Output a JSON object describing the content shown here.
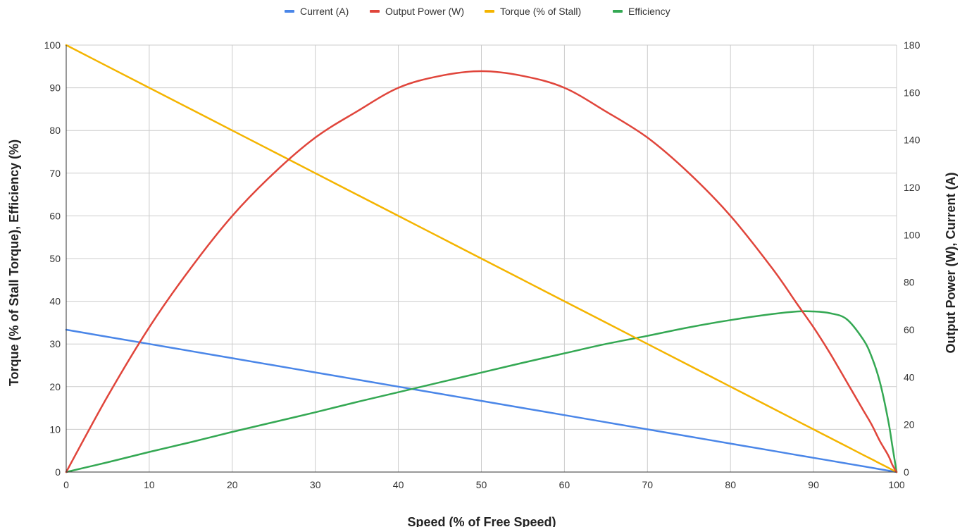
{
  "chart_data": {
    "type": "line",
    "title": "",
    "xlabel": "Speed (% of Free Speed)",
    "ylabel_left": "Torque (% of Stall Torque), Efficiency (%)",
    "ylabel_right": "Output Power (W), Current (A)",
    "xlim": [
      0,
      100
    ],
    "ylim_left": [
      0,
      100
    ],
    "ylim_right": [
      0,
      180
    ],
    "x_ticks": [
      0,
      10,
      20,
      30,
      40,
      50,
      60,
      70,
      80,
      90,
      100
    ],
    "y_left_ticks": [
      0,
      10,
      20,
      30,
      40,
      50,
      60,
      70,
      80,
      90,
      100
    ],
    "y_right_ticks": [
      0,
      20,
      40,
      60,
      80,
      100,
      120,
      140,
      160,
      180
    ],
    "grid": true,
    "legend_position": "top",
    "x": [
      0,
      5,
      10,
      15,
      20,
      25,
      30,
      35,
      40,
      45,
      50,
      55,
      60,
      65,
      70,
      75,
      80,
      85,
      88,
      90,
      92,
      94,
      96,
      97,
      98,
      99,
      99.5,
      100
    ],
    "series": [
      {
        "name": "Current (A)",
        "color": "#4a86e8",
        "axis": "right",
        "values": [
          60,
          57,
          54,
          51,
          48,
          45,
          42,
          39,
          36,
          33,
          30,
          27,
          24,
          21,
          18,
          15,
          12,
          9,
          7.2,
          6,
          4.8,
          3.6,
          2.4,
          1.8,
          1.2,
          0.6,
          0.3,
          0
        ]
      },
      {
        "name": "Output Power (W)",
        "color": "#e0453b",
        "axis": "right",
        "values": [
          0,
          32,
          61,
          86,
          108,
          126,
          141,
          152,
          162,
          167,
          169,
          167,
          162,
          152,
          141,
          126,
          108,
          86,
          71,
          61,
          50,
          38,
          26,
          20,
          13,
          7,
          3,
          0
        ]
      },
      {
        "name": "Torque (% of Stall)",
        "color": "#f4b400",
        "axis": "left",
        "values": [
          100,
          95,
          90,
          85,
          80,
          75,
          70,
          65,
          60,
          55,
          50,
          45,
          40,
          35,
          30,
          25,
          20,
          15,
          12,
          10,
          8,
          6,
          4,
          3,
          2,
          1,
          0.5,
          0
        ]
      },
      {
        "name": "Efficiency",
        "color": "#34a853",
        "axis": "left",
        "values": [
          0,
          2.3,
          4.7,
          7.0,
          9.4,
          11.7,
          14.0,
          16.4,
          18.7,
          21.0,
          23.3,
          25.6,
          27.8,
          30.0,
          31.9,
          33.9,
          35.6,
          37.0,
          37.6,
          37.6,
          37.2,
          35.8,
          31.0,
          27.0,
          21.0,
          12.0,
          6.0,
          0
        ]
      }
    ]
  }
}
